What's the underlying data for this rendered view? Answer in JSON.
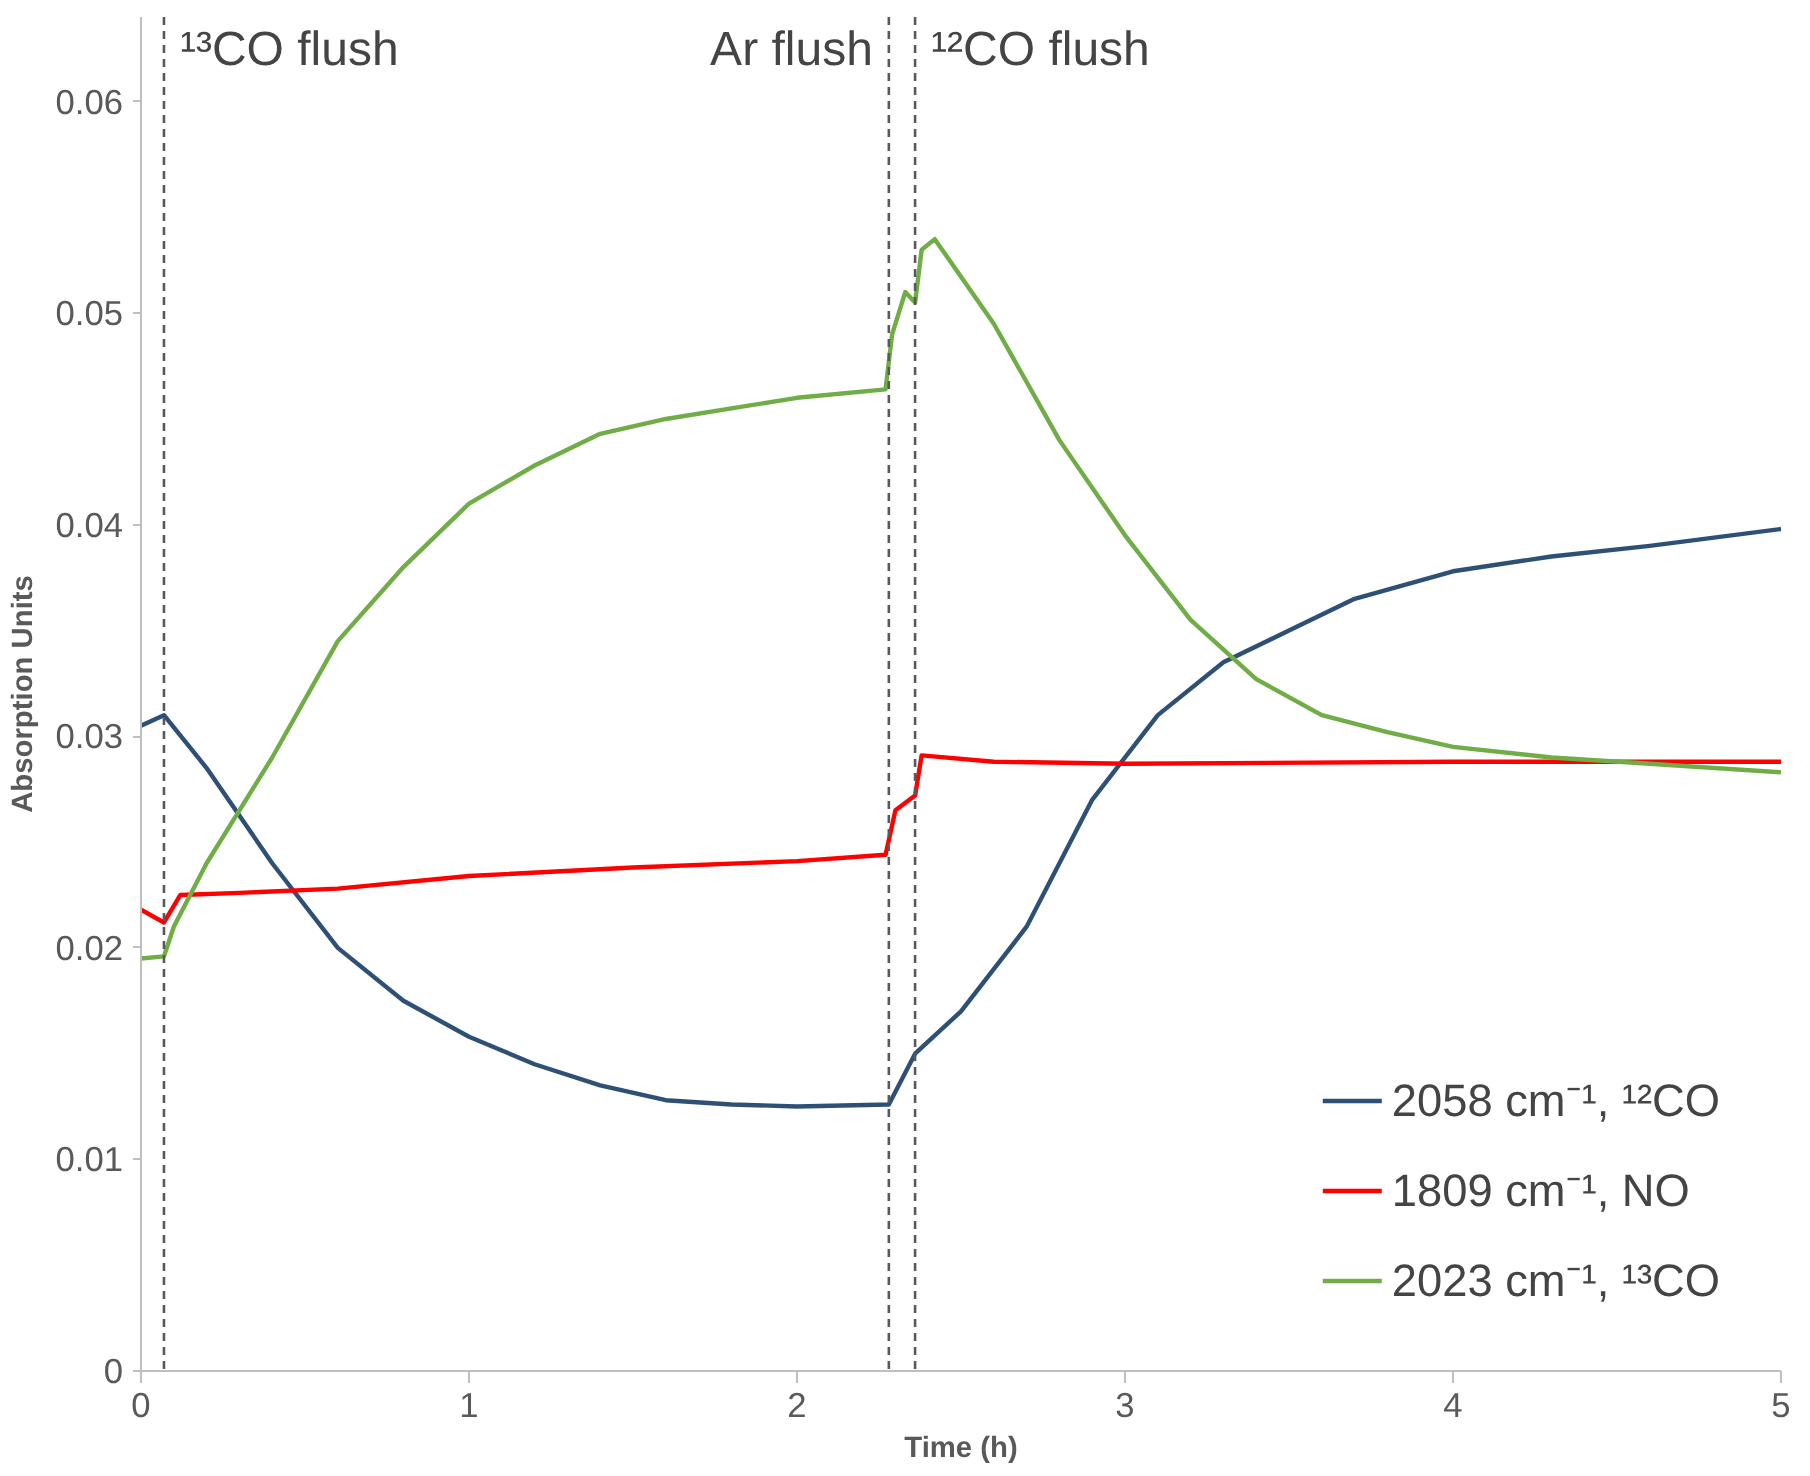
{
  "chart_data": {
    "type": "line",
    "xlabel": "Time (h)",
    "ylabel": "Absorption Units",
    "xlim": [
      0,
      5
    ],
    "ylim": [
      0,
      0.064
    ],
    "xticks": [
      0,
      1,
      2,
      3,
      4,
      5
    ],
    "yticks": [
      0,
      0.01,
      0.02,
      0.03,
      0.04,
      0.05,
      0.06
    ],
    "grid": false,
    "legend": "bottom right",
    "marker": "none",
    "line_style": "solid",
    "series": [
      {
        "name": "2058 cm⁻¹, ¹²CO",
        "color": "#2e5077",
        "x": [
          0,
          0.07,
          0.2,
          0.4,
          0.6,
          0.8,
          1.0,
          1.2,
          1.4,
          1.6,
          1.8,
          2.0,
          2.28,
          2.36,
          2.5,
          2.7,
          2.9,
          3.1,
          3.3,
          3.5,
          3.7,
          4.0,
          4.3,
          4.6,
          5.0
        ],
        "values": [
          0.0305,
          0.031,
          0.0285,
          0.024,
          0.02,
          0.0175,
          0.0158,
          0.0145,
          0.0135,
          0.0128,
          0.0126,
          0.0125,
          0.0126,
          0.015,
          0.017,
          0.021,
          0.027,
          0.031,
          0.0335,
          0.035,
          0.0365,
          0.0378,
          0.0385,
          0.039,
          0.0398
        ]
      },
      {
        "name": "1809 cm⁻¹, NO",
        "color": "#ff0000",
        "x": [
          0,
          0.07,
          0.12,
          0.3,
          0.6,
          1.0,
          1.5,
          2.0,
          2.27,
          2.3,
          2.36,
          2.38,
          2.6,
          3.0,
          4.0,
          5.0
        ],
        "values": [
          0.0218,
          0.0212,
          0.0225,
          0.0226,
          0.0228,
          0.0234,
          0.0238,
          0.0241,
          0.0244,
          0.0265,
          0.0272,
          0.0291,
          0.0288,
          0.0287,
          0.0288,
          0.0288
        ]
      },
      {
        "name": "2023 cm⁻¹, ¹³CO",
        "color": "#70ad47",
        "x": [
          0,
          0.07,
          0.1,
          0.2,
          0.4,
          0.6,
          0.8,
          1.0,
          1.2,
          1.4,
          1.6,
          1.8,
          2.0,
          2.27,
          2.29,
          2.33,
          2.36,
          2.38,
          2.42,
          2.6,
          2.8,
          3.0,
          3.2,
          3.4,
          3.6,
          3.8,
          4.0,
          4.3,
          4.6,
          5.0
        ],
        "values": [
          0.0195,
          0.0196,
          0.021,
          0.024,
          0.029,
          0.0345,
          0.038,
          0.041,
          0.0428,
          0.0443,
          0.045,
          0.0455,
          0.046,
          0.0464,
          0.049,
          0.051,
          0.0505,
          0.053,
          0.0535,
          0.0495,
          0.044,
          0.0395,
          0.0355,
          0.0327,
          0.031,
          0.0302,
          0.0295,
          0.029,
          0.0287,
          0.0283
        ]
      }
    ],
    "ref_lines": [
      {
        "axis": "x",
        "value": 0.07,
        "color": "#595959",
        "line_style": "dashed",
        "label": "¹³CO flush"
      },
      {
        "axis": "x",
        "value": 2.28,
        "color": "#595959",
        "line_style": "dashed",
        "label": "Ar flush"
      },
      {
        "axis": "x",
        "value": 2.36,
        "color": "#595959",
        "line_style": "dashed",
        "label": "¹²CO flush"
      }
    ]
  }
}
